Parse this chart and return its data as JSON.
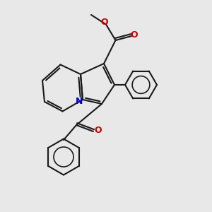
{
  "background_color": "#e8e8e8",
  "bond_color": "#1a1a1a",
  "nitrogen_color": "#0000cc",
  "oxygen_color": "#cc0000",
  "line_width": 1.5,
  "figsize": [
    3.0,
    3.0
  ],
  "dpi": 100,
  "xlim": [
    0,
    10
  ],
  "ylim": [
    0,
    10
  ],
  "n_label": "N",
  "o_label": "O",
  "methyl_label": "O"
}
